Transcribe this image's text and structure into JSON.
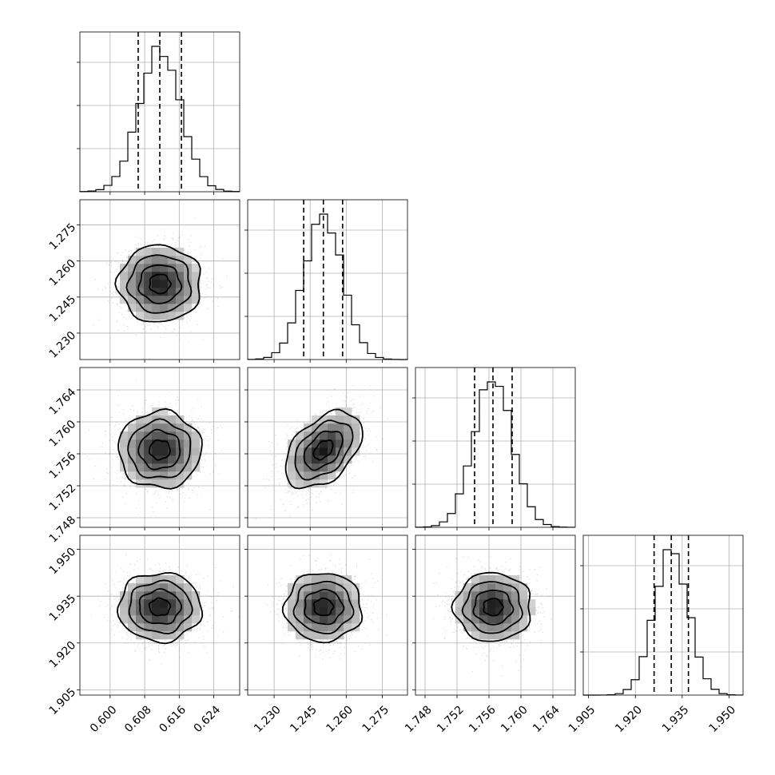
{
  "chart_data": {
    "type": "corner",
    "parameters": [
      {
        "index": 0,
        "median": 0.6115,
        "sigma": 0.0048,
        "quantile_lines": [
          0.6065,
          0.6115,
          0.6165
        ],
        "axis_range": [
          0.593,
          0.63
        ],
        "ticks": [
          0.6,
          0.608,
          0.616,
          0.624
        ],
        "tick_labels": [
          "0.600",
          "0.608",
          "0.616",
          "0.624"
        ]
      },
      {
        "index": 1,
        "median": 1.2505,
        "sigma": 0.008,
        "quantile_lines": [
          1.2423,
          1.2505,
          1.2585
        ],
        "axis_range": [
          1.219,
          1.2855
        ],
        "ticks": [
          1.23,
          1.245,
          1.26,
          1.275
        ],
        "tick_labels": [
          "1.230",
          "1.245",
          "1.260",
          "1.275"
        ]
      },
      {
        "index": 2,
        "median": 1.7565,
        "sigma": 0.0024,
        "quantile_lines": [
          1.7542,
          1.7565,
          1.7589
        ],
        "axis_range": [
          1.7468,
          1.7668
        ],
        "ticks": [
          1.748,
          1.752,
          1.756,
          1.76,
          1.764
        ],
        "tick_labels": [
          "1.748",
          "1.752",
          "1.756",
          "1.760",
          "1.764"
        ]
      },
      {
        "index": 3,
        "median": 1.9315,
        "sigma": 0.0055,
        "quantile_lines": [
          1.926,
          1.9315,
          1.937
        ],
        "axis_range": [
          1.9033,
          1.9545
        ],
        "ticks": [
          1.905,
          1.92,
          1.935,
          1.95
        ],
        "tick_labels": [
          "1.905",
          "1.920",
          "1.935",
          "1.950"
        ]
      }
    ],
    "correlations": {
      "1-0": 0.0,
      "2-0": 0.0,
      "2-1": 0.45,
      "3-0": 0.0,
      "3-1": 0.0,
      "3-2": 0.0
    },
    "histogram_bins": 20,
    "quantiles_shown": [
      0.16,
      0.5,
      0.84
    ],
    "grid": true,
    "colors": {
      "line": "#000000",
      "grid": "#b0b0b0",
      "points": "#9a9a9a",
      "density_dark": "#1e1e1e"
    }
  }
}
